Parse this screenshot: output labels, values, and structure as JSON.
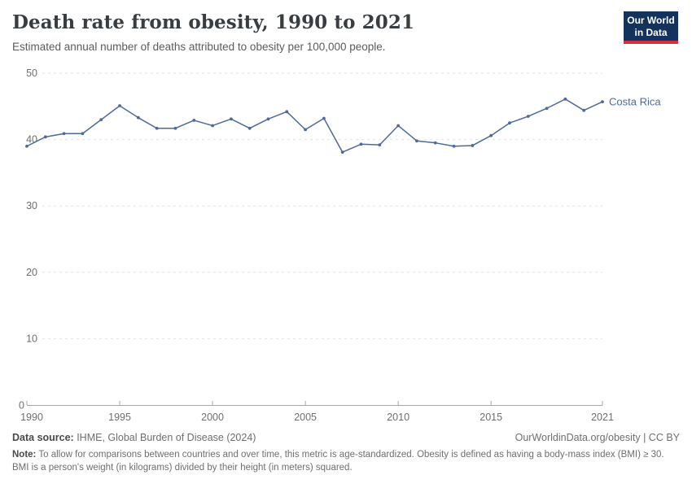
{
  "header": {
    "title": "Death rate from obesity, 1990 to 2021",
    "subtitle": "Estimated annual number of deaths attributed to obesity per 100,000 people.",
    "logo_line1": "Our World",
    "logo_line2": "in Data"
  },
  "chart_data": {
    "type": "line",
    "title": "Death rate from obesity, 1990 to 2021",
    "xlabel": "",
    "ylabel": "",
    "xlim": [
      1990,
      2021
    ],
    "ylim": [
      0,
      50
    ],
    "x_ticks": [
      1990,
      1995,
      2000,
      2005,
      2010,
      2015,
      2021
    ],
    "y_ticks": [
      0,
      10,
      20,
      30,
      40,
      50
    ],
    "grid": "horizontal-dashed",
    "legend_position": "end-of-line-label",
    "series": [
      {
        "name": "Costa Rica",
        "color": "#4C6A9C",
        "x": [
          1990,
          1991,
          1992,
          1993,
          1994,
          1995,
          1996,
          1997,
          1998,
          1999,
          2000,
          2001,
          2002,
          2003,
          2004,
          2005,
          2006,
          2007,
          2008,
          2009,
          2010,
          2011,
          2012,
          2013,
          2014,
          2015,
          2016,
          2017,
          2018,
          2019,
          2020,
          2021
        ],
        "values": [
          39.0,
          40.4,
          40.9,
          40.9,
          43.0,
          45.1,
          43.3,
          41.7,
          41.7,
          42.9,
          42.1,
          43.1,
          41.7,
          43.1,
          44.2,
          41.5,
          43.2,
          38.1,
          39.3,
          39.2,
          42.1,
          39.8,
          39.5,
          39.0,
          39.1,
          40.6,
          42.5,
          43.5,
          44.7,
          46.1,
          44.4,
          45.7
        ]
      }
    ]
  },
  "footer": {
    "datasource_label": "Data source:",
    "datasource_text": " IHME, Global Burden of Disease (2024)",
    "link_text": "OurWorldinData.org/obesity | CC BY",
    "note_label": "Note:",
    "note_text": " To allow for comparisons between countries and over time, this metric is age-standardized. Obesity is defined as having a body-mass index (BMI) ≥ 30. BMI is a person's weight (in kilograms) divided by their height (in meters) squared."
  },
  "colors": {
    "line": "#4C6A9C",
    "series_label": "#4C6A9C",
    "grid": "#e2e2e2",
    "axis": "#a7a7a7",
    "tick_text": "#6e6e6e",
    "logo_bg": "#13335c",
    "logo_red": "#cf3340"
  }
}
